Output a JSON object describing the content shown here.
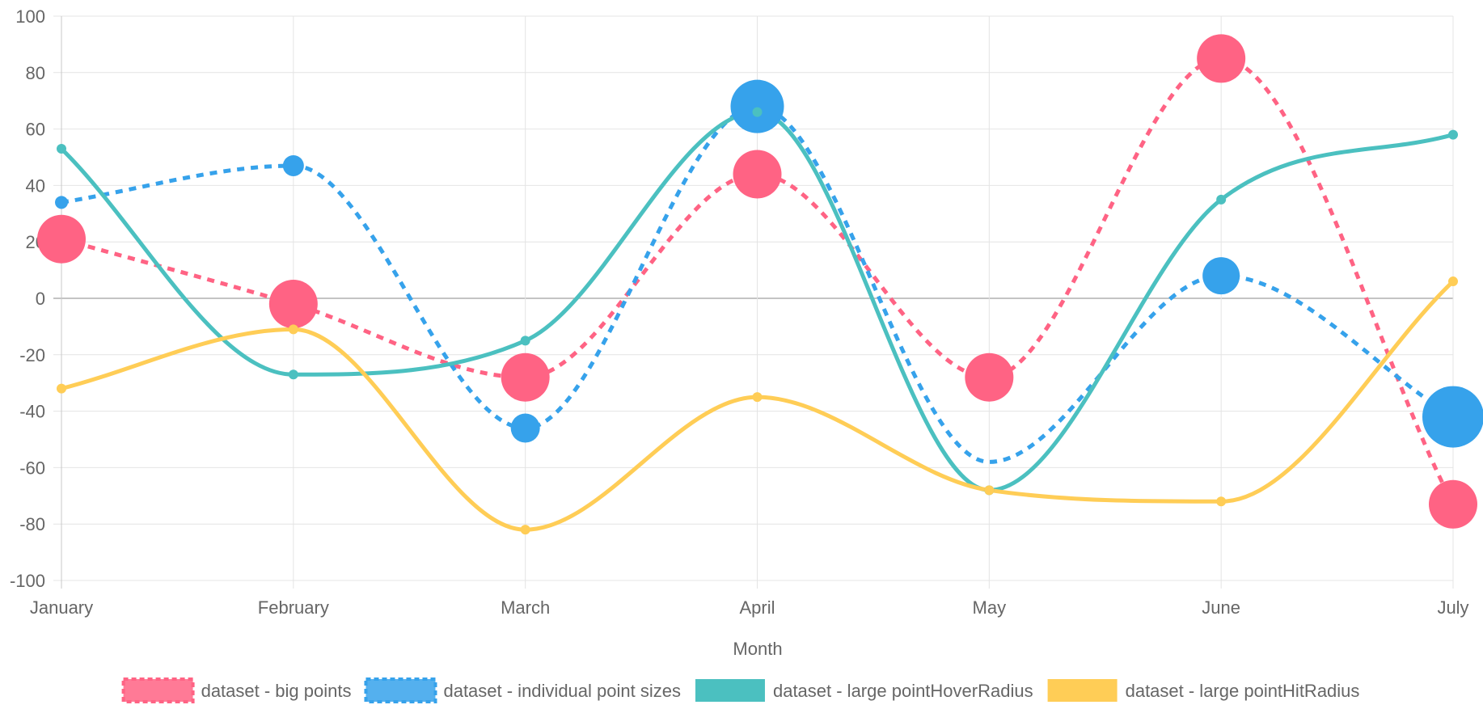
{
  "chart_data": {
    "type": "line",
    "categories": [
      "January",
      "February",
      "March",
      "April",
      "May",
      "June",
      "July"
    ],
    "xlabel": "Month",
    "ylabel": "",
    "ylim": [
      -100,
      100
    ],
    "y_ticks": [
      "100",
      "80",
      "60",
      "40",
      "20",
      "0",
      "-20",
      "-40",
      "-60",
      "-80",
      "-100"
    ],
    "grid": true,
    "legend_position": "bottom",
    "series": [
      {
        "name": "dataset - big points",
        "values": [
          21,
          -2,
          -28,
          44,
          -28,
          85,
          -73
        ],
        "color": "#ff6384",
        "line_style": "dashed",
        "point_size": "large"
      },
      {
        "name": "dataset - individual point sizes",
        "values": [
          34,
          47,
          -46,
          68,
          -58,
          8,
          -42
        ],
        "color": "#36a2eb",
        "line_style": "dashed",
        "point_sizes_relative": [
          1,
          2,
          3,
          6,
          0,
          4,
          7
        ]
      },
      {
        "name": "dataset - large pointHoverRadius",
        "values": [
          53,
          -27,
          -15,
          66,
          -68,
          35,
          58
        ],
        "color": "#4bc0c0",
        "line_style": "solid",
        "point_size": "small"
      },
      {
        "name": "dataset - large pointHitRadius",
        "values": [
          -32,
          -11,
          -82,
          -35,
          -68,
          -72,
          6
        ],
        "color": "#ffcd56",
        "line_style": "solid",
        "point_size": "small"
      }
    ]
  }
}
